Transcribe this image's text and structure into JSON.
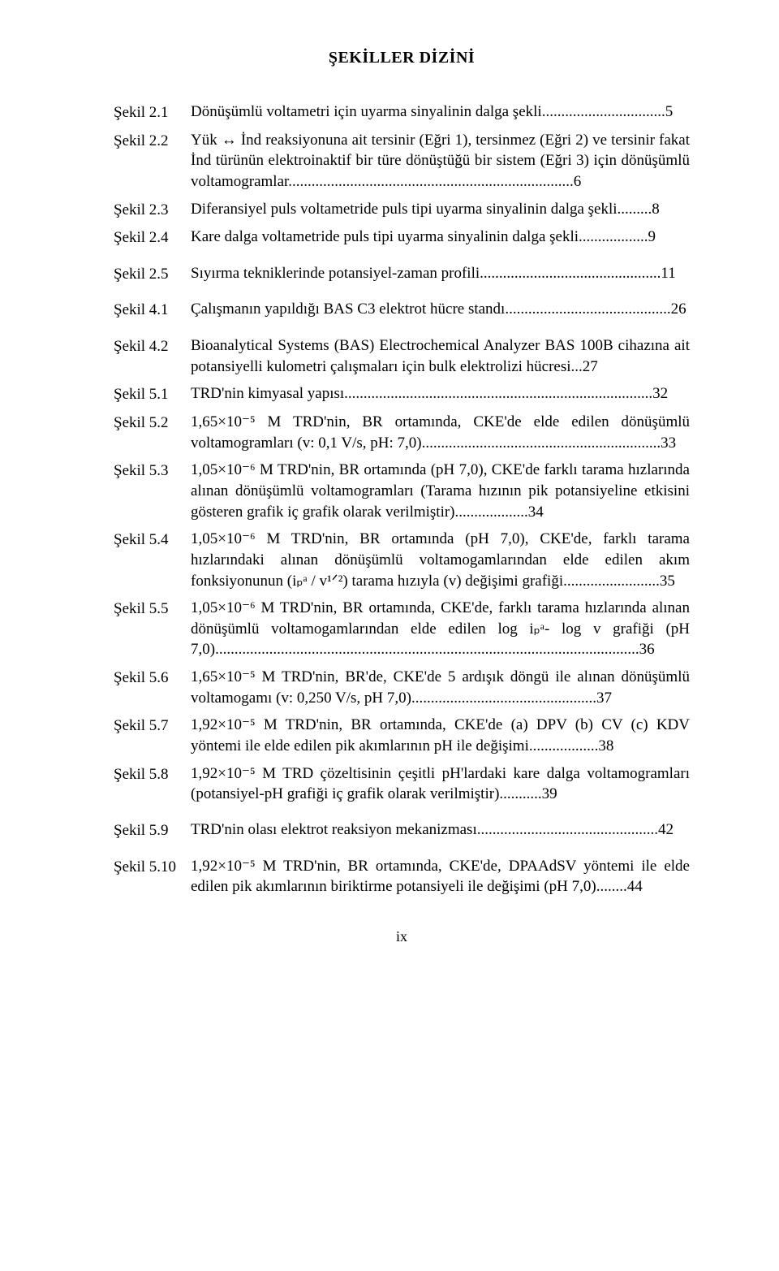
{
  "title": "ŞEKİLLER DİZİNİ",
  "entries": [
    {
      "label": "Şekil 2.1",
      "text": "Dönüşümlü voltametri için uyarma sinyalinin dalga şekli................................5"
    },
    {
      "label": "Şekil 2.2",
      "text": "Yük ↔ İnd reaksiyonuna ait tersinir (Eğri 1), tersinmez (Eğri 2)  ve tersinir fakat İnd türünün elektroinaktif bir türe dönüştüğü bir sistem (Eğri 3) için dönüşümlü voltamogramlar..........................................................................6"
    },
    {
      "label": "Şekil 2.3",
      "text": "Diferansiyel puls voltametride puls tipi uyarma sinyalinin dalga şekli.........8"
    },
    {
      "label": "Şekil 2.4",
      "text": "Kare dalga voltametride puls tipi uyarma sinyalinin dalga şekli..................9"
    },
    {
      "gap": true
    },
    {
      "label": "Şekil 2.5",
      "text": "Sıyırma tekniklerinde potansiyel-zaman profili...............................................11"
    },
    {
      "gap": true
    },
    {
      "label": "Şekil 4.1",
      "text": "Çalışmanın yapıldığı BAS C3 elektrot hücre standı...........................................26"
    },
    {
      "gap": true
    },
    {
      "label": "Şekil 4.2",
      "text": "Bioanalytical Systems (BAS) Electrochemical Analyzer BAS 100B cihazına ait potansiyelli kulometri çalışmaları için bulk elektrolizi hücresi...27"
    },
    {
      "label": "Şekil 5.1",
      "text": "TRD'nin kimyasal yapısı................................................................................32"
    },
    {
      "label": "Şekil 5.2",
      "text": "1,65×10⁻⁵ M TRD'nin, BR ortamında, CKE'de elde edilen dönüşümlü voltamogramları (v: 0,1 V/s, pH: 7,0)..............................................................33"
    },
    {
      "label": "Şekil 5.3",
      "text": "1,05×10⁻⁶ M TRD'nin, BR ortamında (pH 7,0), CKE'de  farklı tarama hızlarında alınan dönüşümlü voltamogramları (Tarama hızının pik potansiyeline etkisini gösteren grafik iç grafik olarak verilmiştir)...................34"
    },
    {
      "label": "Şekil 5.4",
      "text": "1,05×10⁻⁶ M TRD'nin, BR ortamında (pH 7,0), CKE'de, farklı tarama hızlarındaki alınan dönüşümlü voltamogamlarından elde edilen akım fonksiyonunun (iₚᵃ / v¹ᐟ²)  tarama hızıyla (v) değişimi grafiği.........................35"
    },
    {
      "label": "Şekil 5.5",
      "text": "1,05×10⁻⁶ M TRD'nin, BR ortamında, CKE'de, farklı tarama hızlarında alınan dönüşümlü voltamogamlarından elde edilen log iₚᵃ- log v grafiği (pH 7,0)..............................................................................................................36"
    },
    {
      "label": "Şekil 5.6",
      "text": "1,65×10⁻⁵ M TRD'nin, BR'de, CKE'de 5  ardışık döngü  ile alınan dönüşümlü voltamogamı (v: 0,250 V/s, pH 7,0)................................................37"
    },
    {
      "label": "Şekil 5.7",
      "text": "1,92×10⁻⁵ M TRD'nin, BR ortamında, CKE'de (a) DPV (b) CV (c) KDV yöntemi ile elde edilen pik akımlarının pH ile değişimi..................38"
    },
    {
      "label": "Şekil 5.8",
      "text": "1,92×10⁻⁵ M TRD çözeltisinin çeşitli pH'lardaki kare dalga voltamogramları (potansiyel-pH grafiği iç grafik olarak verilmiştir)...........39"
    },
    {
      "gap": true
    },
    {
      "label": "Şekil 5.9",
      "text": "TRD'nin olası elektrot reaksiyon mekanizması...............................................42"
    },
    {
      "gap": true
    },
    {
      "label": "Şekil 5.10",
      "text": "1,92×10⁻⁵ M TRD'nin, BR ortamında, CKE'de, DPAAdSV yöntemi ile elde edilen pik akımlarının biriktirme potansiyeli ile değişimi (pH 7,0)........44"
    }
  ],
  "pageNumber": "ix"
}
